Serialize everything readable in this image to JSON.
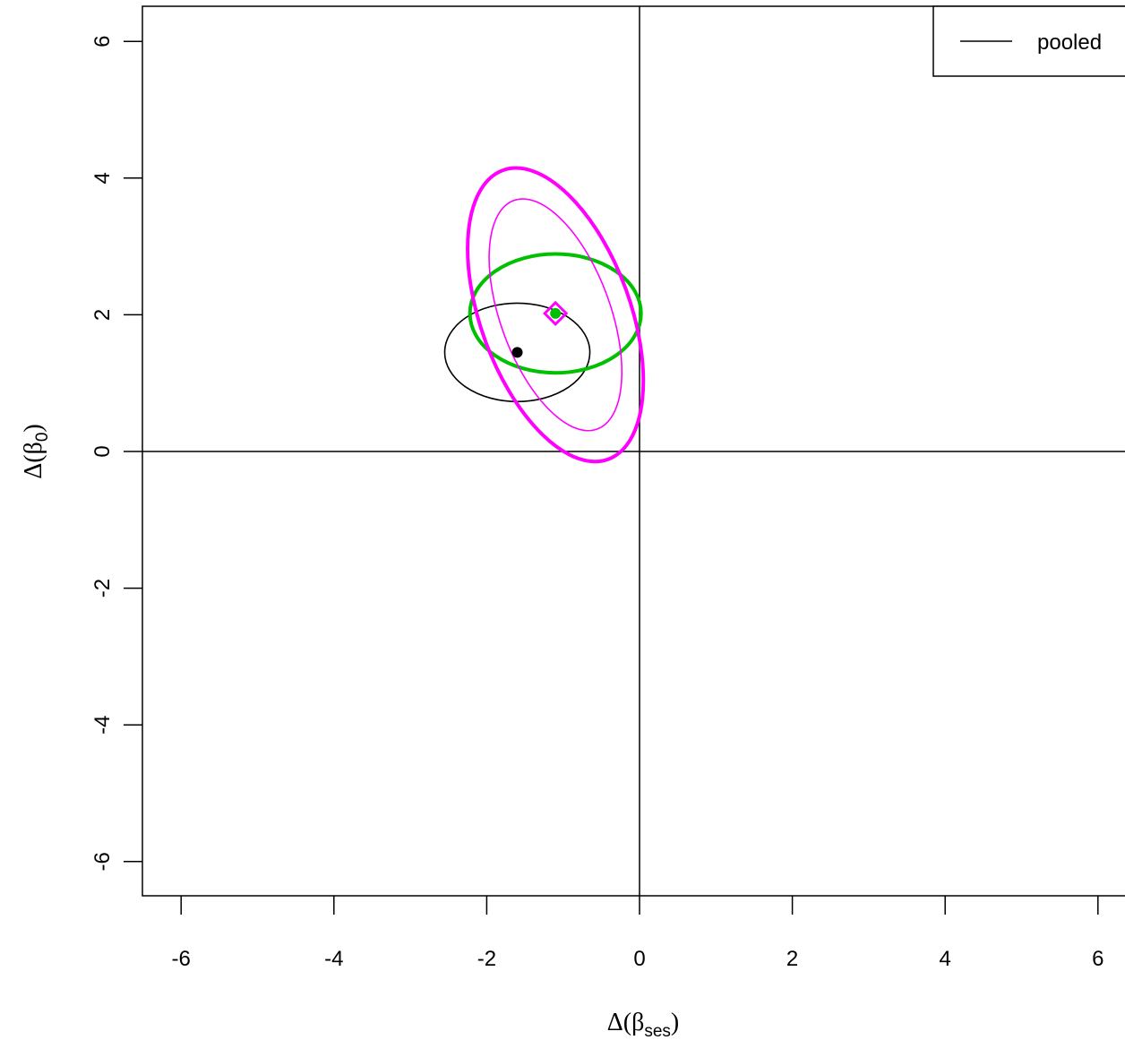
{
  "chart_data": {
    "type": "scatter",
    "title": "",
    "xlabel": {
      "prefix": "Δ(β",
      "sub": "ses",
      "suffix": ")"
    },
    "ylabel": {
      "prefix": "Δ(β",
      "sub": "0",
      "suffix": ")"
    },
    "xlim": [
      -6.5,
      6.5
    ],
    "ylim": [
      -6.5,
      6.5
    ],
    "x_ticks": [
      -6,
      -4,
      -2,
      0,
      2,
      4,
      6
    ],
    "y_ticks": [
      -6,
      -4,
      -2,
      0,
      2,
      4,
      6
    ],
    "x_tick_labels": [
      "-6",
      "-4",
      "-2",
      "0",
      "2",
      "4",
      "6"
    ],
    "y_tick_labels": [
      "-6",
      "-4",
      "-2",
      "0",
      "2",
      "4",
      "6"
    ],
    "reference_lines": {
      "x": 0,
      "y": 0
    },
    "grid": false,
    "legend": {
      "position": "top-right",
      "entries": [
        {
          "label": "pooled",
          "color": "#000000"
        }
      ]
    },
    "series": [
      {
        "color": "#000000",
        "width": "thin",
        "center": [
          -1.6,
          1.45
        ],
        "ellipse": {
          "rx": 0.95,
          "ry": 0.72,
          "angle_deg": 0
        }
      },
      {
        "color": "#00c000",
        "width": "thick",
        "center": [
          -1.1,
          2.02
        ],
        "ellipse": {
          "rx": 1.12,
          "ry": 0.87,
          "angle_deg": 0
        }
      },
      {
        "color": "#ff00ff",
        "width": "thin",
        "center": [
          -1.1,
          2.0
        ],
        "ellipse": {
          "rx": 0.72,
          "ry": 1.78,
          "angle_deg": -20
        }
      },
      {
        "color": "#ff00ff",
        "width": "thick",
        "center": [
          -1.1,
          2.0
        ],
        "ellipse": {
          "rx": 0.98,
          "ry": 2.25,
          "angle_deg": -20
        }
      }
    ],
    "points": [
      {
        "x": -1.6,
        "y": 1.45,
        "color": "#000000",
        "shape": "circle"
      },
      {
        "x": -1.1,
        "y": 2.02,
        "color": "#00c000",
        "shape": "circle"
      },
      {
        "x": -1.1,
        "y": 2.02,
        "color": "#ff00ff",
        "shape": "diamond"
      }
    ]
  }
}
